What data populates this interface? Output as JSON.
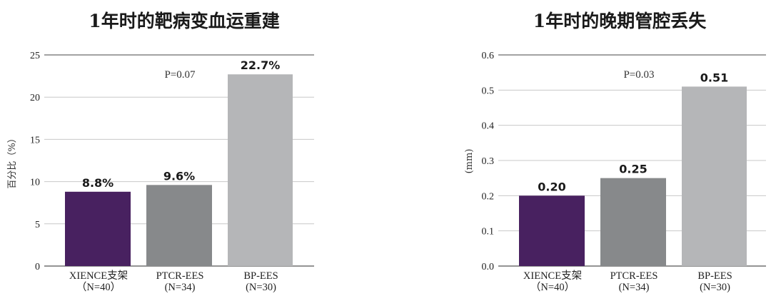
{
  "colors": {
    "xience": "#482160",
    "ptcr": "#87898b",
    "bp": "#b5b6b8"
  },
  "chart_data": [
    {
      "type": "bar",
      "title": "1年时的靶病变血运重建",
      "ylabel": "百分比（%）",
      "ylim": [
        0,
        25
      ],
      "yticks": [
        "0",
        "5",
        "10",
        "15",
        "20",
        "25"
      ],
      "annotation": "P=0.07",
      "categories": [
        [
          "XIENCE支架",
          "（N=40）"
        ],
        [
          "PTCR-EES",
          "(N=34)"
        ],
        [
          "BP-EES",
          "(N=30)"
        ]
      ],
      "values": [
        8.8,
        9.6,
        22.7
      ],
      "value_labels": [
        "8.8%",
        "9.6%",
        "22.7%"
      ],
      "grid": true
    },
    {
      "type": "bar",
      "title": "1年时的晚期管腔丢失",
      "ylabel": "(mm)",
      "ylim": [
        0,
        0.6
      ],
      "yticks": [
        "0.0",
        "0.1",
        "0.2",
        "0.3",
        "0.4",
        "0.5",
        "0.6"
      ],
      "annotation": "P=0.03",
      "categories": [
        [
          "XIENCE支架",
          "（N=40）"
        ],
        [
          "PTCR-EES",
          "(N=34)"
        ],
        [
          "BP-EES",
          "(N=30)"
        ]
      ],
      "values": [
        0.2,
        0.25,
        0.51
      ],
      "value_labels": [
        "0.20",
        "0.25",
        "0.51"
      ],
      "grid": true
    }
  ]
}
